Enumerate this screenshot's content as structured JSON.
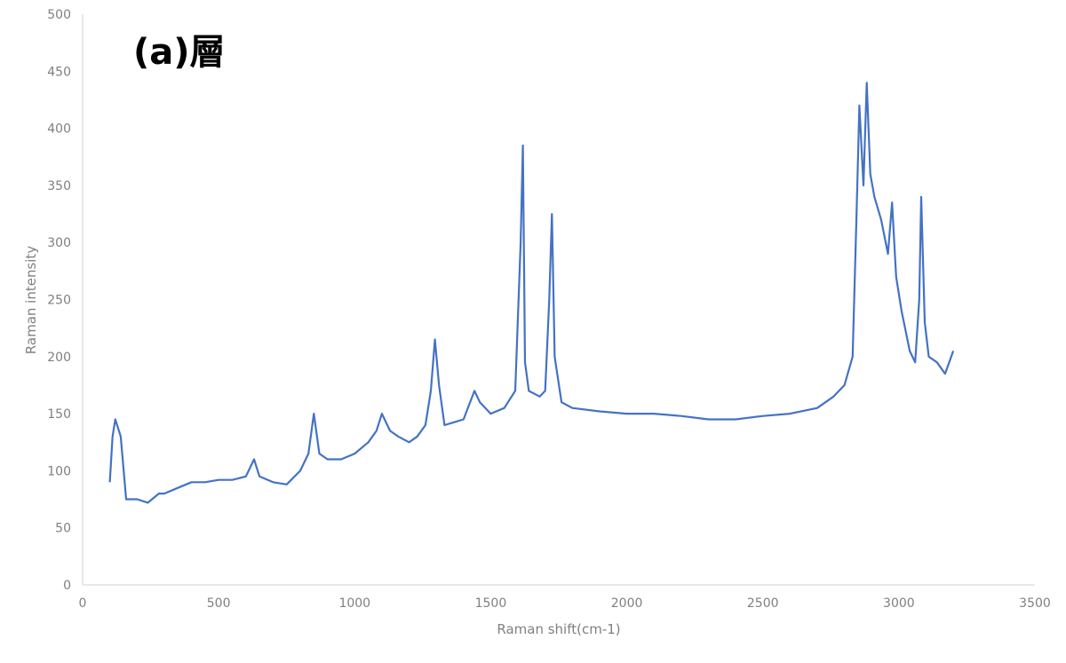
{
  "chart_data": {
    "type": "line",
    "title": "(a)層",
    "xlabel": "Raman shift(cm-1)",
    "ylabel": "Raman intensity",
    "xlim": [
      0,
      3500
    ],
    "ylim": [
      0,
      500
    ],
    "x_ticks": [
      "0",
      "500",
      "1000",
      "1500",
      "2000",
      "2500",
      "3000",
      "3500"
    ],
    "y_ticks": [
      "0",
      "50",
      "100",
      "150",
      "200",
      "250",
      "300",
      "350",
      "400",
      "450",
      "500"
    ],
    "grid": false,
    "legend": "none",
    "series": [
      {
        "color": "#4472C4",
        "x": [
          100,
          110,
          120,
          140,
          160,
          200,
          240,
          280,
          300,
          350,
          400,
          450,
          500,
          550,
          600,
          630,
          650,
          700,
          750,
          800,
          830,
          850,
          870,
          900,
          950,
          1000,
          1050,
          1080,
          1100,
          1130,
          1160,
          1200,
          1230,
          1260,
          1280,
          1295,
          1310,
          1330,
          1400,
          1440,
          1460,
          1500,
          1550,
          1590,
          1610,
          1618,
          1626,
          1640,
          1680,
          1700,
          1715,
          1725,
          1735,
          1760,
          1800,
          1900,
          2000,
          2100,
          2200,
          2300,
          2400,
          2500,
          2600,
          2700,
          2760,
          2800,
          2830,
          2845,
          2855,
          2870,
          2882,
          2895,
          2910,
          2935,
          2960,
          2975,
          2990,
          3010,
          3040,
          3060,
          3075,
          3082,
          3095,
          3110,
          3140,
          3170,
          3200
        ],
        "y": [
          90,
          130,
          145,
          130,
          75,
          75,
          72,
          80,
          80,
          85,
          90,
          90,
          92,
          92,
          95,
          110,
          95,
          90,
          88,
          100,
          115,
          150,
          115,
          110,
          110,
          115,
          125,
          135,
          150,
          135,
          130,
          125,
          130,
          140,
          170,
          215,
          175,
          140,
          145,
          170,
          160,
          150,
          155,
          170,
          300,
          385,
          195,
          170,
          165,
          170,
          250,
          325,
          200,
          160,
          155,
          152,
          150,
          150,
          148,
          145,
          145,
          148,
          150,
          155,
          165,
          175,
          200,
          330,
          420,
          350,
          440,
          360,
          340,
          320,
          290,
          335,
          270,
          240,
          205,
          195,
          250,
          340,
          230,
          200,
          195,
          185,
          205
        ]
      }
    ]
  }
}
